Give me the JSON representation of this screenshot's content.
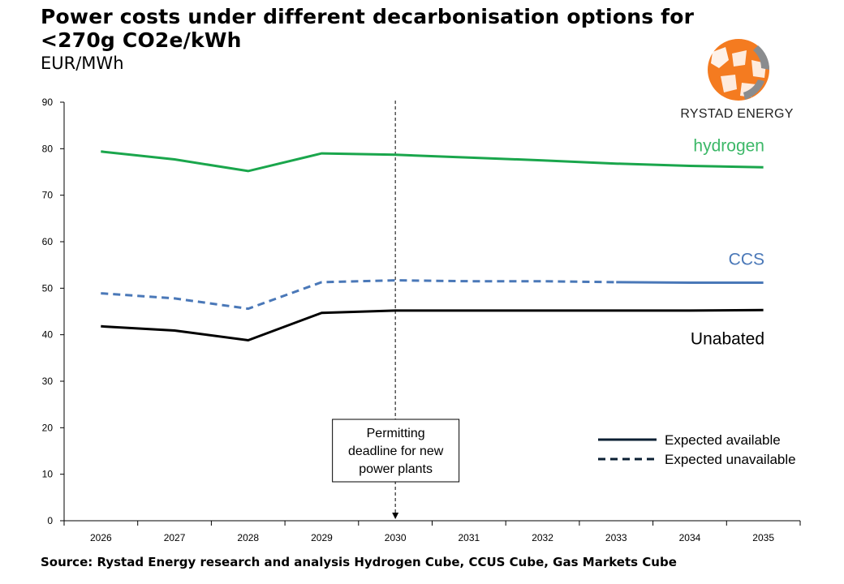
{
  "header": {
    "title": "Power costs under different decarbonisation options for <270g CO2e/kWh",
    "subtitle": "EUR/MWh"
  },
  "footer": {
    "source": "Source: Rystad Energy research and analysis Hydrogen Cube, CCUS Cube, Gas Markets Cube"
  },
  "logo": {
    "text": "RYSTAD ENERGY",
    "colors": [
      "#f47b20",
      "#8a8c8e"
    ]
  },
  "chart_data": {
    "type": "line",
    "categories": [
      "2026",
      "2027",
      "2028",
      "2029",
      "2030",
      "2031",
      "2032",
      "2033",
      "2034",
      "2035"
    ],
    "ylim": [
      0,
      90
    ],
    "yticks": [
      0,
      10,
      20,
      30,
      40,
      50,
      60,
      70,
      80,
      90
    ],
    "grid": false,
    "xlabel": "",
    "ylabel": "",
    "series": [
      {
        "name": "hydrogen",
        "color": "#1aa64c",
        "label_color": "#3cb868",
        "values": [
          79.4,
          77.7,
          75.2,
          79.0,
          78.7,
          78.1,
          77.5,
          76.8,
          76.3,
          76.0
        ],
        "line_style": "solid"
      },
      {
        "name": "CCS",
        "color": "#4a78b8",
        "label_color": "#4a78b8",
        "values": [
          48.9,
          47.8,
          45.6,
          51.3,
          51.7,
          51.5,
          51.5,
          51.3,
          51.2,
          51.2
        ],
        "line_style": "dashed_until_2033_then_solid"
      },
      {
        "name": "Unabated",
        "color": "#000000",
        "label_color": "#000000",
        "values": [
          41.8,
          40.9,
          38.8,
          44.7,
          45.2,
          45.2,
          45.2,
          45.2,
          45.2,
          45.3
        ],
        "line_style": "solid"
      }
    ],
    "annotation": {
      "text_lines": [
        "Permitting",
        "deadline for new",
        "power plants"
      ],
      "x": "2030"
    },
    "legend": {
      "placement": "bottom-right",
      "items": [
        {
          "label": "Expected available",
          "style": "solid",
          "color": "#0b1f33"
        },
        {
          "label": "Expected unavailable",
          "style": "dashed",
          "color": "#0b1f33"
        }
      ]
    }
  }
}
